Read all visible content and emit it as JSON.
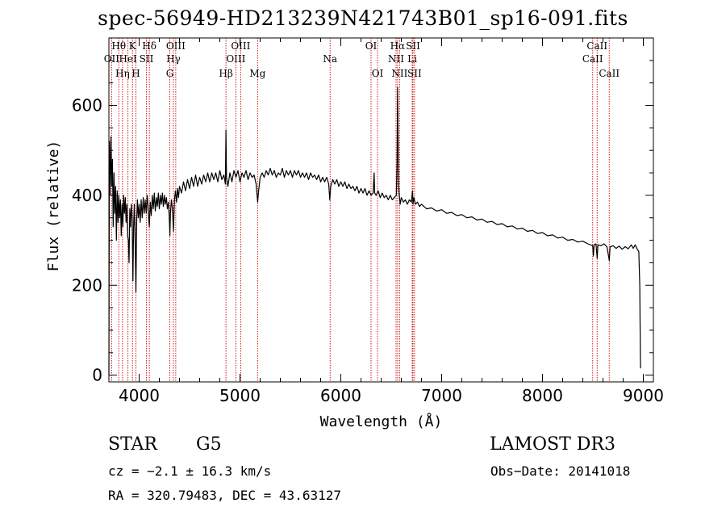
{
  "chart_data": {
    "type": "line",
    "title": "spec-56949-HD213239N421743B01_sp16-091.fits",
    "xlabel": "Wavelength (Å)",
    "ylabel": "Flux (relative)",
    "xlim": [
      3700,
      9100
    ],
    "ylim": [
      -15,
      750
    ],
    "xticks": [
      4000,
      5000,
      6000,
      7000,
      8000,
      9000
    ],
    "yticks": [
      0,
      200,
      400,
      600
    ],
    "series": [
      {
        "name": "spectrum",
        "points": [
          [
            3700,
            0
          ],
          [
            3705,
            520
          ],
          [
            3712,
            400
          ],
          [
            3720,
            530
          ],
          [
            3728,
            420
          ],
          [
            3735,
            480
          ],
          [
            3742,
            330
          ],
          [
            3750,
            450
          ],
          [
            3758,
            360
          ],
          [
            3766,
            420
          ],
          [
            3774,
            300
          ],
          [
            3782,
            410
          ],
          [
            3790,
            340
          ],
          [
            3798,
            400
          ],
          [
            3806,
            350
          ],
          [
            3814,
            390
          ],
          [
            3822,
            310
          ],
          [
            3830,
            380
          ],
          [
            3838,
            330
          ],
          [
            3846,
            400
          ],
          [
            3854,
            360
          ],
          [
            3862,
            395
          ],
          [
            3870,
            340
          ],
          [
            3878,
            380
          ],
          [
            3886,
            310
          ],
          [
            3893,
            300
          ],
          [
            3900,
            250
          ],
          [
            3907,
            370
          ],
          [
            3914,
            330
          ],
          [
            3922,
            380
          ],
          [
            3930,
            350
          ],
          [
            3938,
            210
          ],
          [
            3945,
            330
          ],
          [
            3952,
            380
          ],
          [
            3960,
            300
          ],
          [
            3968,
            185
          ],
          [
            3975,
            340
          ],
          [
            3983,
            390
          ],
          [
            3992,
            350
          ],
          [
            4000,
            380
          ],
          [
            4010,
            340
          ],
          [
            4020,
            390
          ],
          [
            4030,
            350
          ],
          [
            4040,
            395
          ],
          [
            4050,
            360
          ],
          [
            4060,
            390
          ],
          [
            4070,
            360
          ],
          [
            4080,
            400
          ],
          [
            4090,
            365
          ],
          [
            4101,
            330
          ],
          [
            4110,
            385
          ],
          [
            4120,
            355
          ],
          [
            4130,
            400
          ],
          [
            4140,
            370
          ],
          [
            4150,
            405
          ],
          [
            4160,
            365
          ],
          [
            4170,
            395
          ],
          [
            4180,
            375
          ],
          [
            4190,
            405
          ],
          [
            4200,
            370
          ],
          [
            4210,
            400
          ],
          [
            4220,
            380
          ],
          [
            4230,
            405
          ],
          [
            4240,
            375
          ],
          [
            4250,
            400
          ],
          [
            4260,
            380
          ],
          [
            4270,
            395
          ],
          [
            4280,
            370
          ],
          [
            4290,
            385
          ],
          [
            4300,
            345
          ],
          [
            4305,
            310
          ],
          [
            4310,
            360
          ],
          [
            4320,
            390
          ],
          [
            4330,
            370
          ],
          [
            4340,
            320
          ],
          [
            4350,
            390
          ],
          [
            4360,
            410
          ],
          [
            4370,
            385
          ],
          [
            4380,
            415
          ],
          [
            4390,
            395
          ],
          [
            4400,
            420
          ],
          [
            4420,
            405
          ],
          [
            4440,
            430
          ],
          [
            4460,
            410
          ],
          [
            4480,
            435
          ],
          [
            4500,
            415
          ],
          [
            4520,
            440
          ],
          [
            4540,
            420
          ],
          [
            4560,
            445
          ],
          [
            4580,
            420
          ],
          [
            4600,
            440
          ],
          [
            4620,
            425
          ],
          [
            4640,
            445
          ],
          [
            4660,
            430
          ],
          [
            4680,
            450
          ],
          [
            4700,
            430
          ],
          [
            4720,
            450
          ],
          [
            4740,
            435
          ],
          [
            4760,
            450
          ],
          [
            4780,
            430
          ],
          [
            4800,
            455
          ],
          [
            4820,
            435
          ],
          [
            4840,
            445
          ],
          [
            4855,
            425
          ],
          [
            4861,
            545
          ],
          [
            4866,
            440
          ],
          [
            4880,
            420
          ],
          [
            4900,
            450
          ],
          [
            4920,
            430
          ],
          [
            4940,
            455
          ],
          [
            4960,
            440
          ],
          [
            4980,
            455
          ],
          [
            5000,
            430
          ],
          [
            5020,
            450
          ],
          [
            5040,
            440
          ],
          [
            5060,
            455
          ],
          [
            5080,
            435
          ],
          [
            5100,
            450
          ],
          [
            5120,
            440
          ],
          [
            5140,
            445
          ],
          [
            5160,
            425
          ],
          [
            5175,
            385
          ],
          [
            5185,
            410
          ],
          [
            5200,
            440
          ],
          [
            5220,
            450
          ],
          [
            5240,
            440
          ],
          [
            5260,
            455
          ],
          [
            5280,
            445
          ],
          [
            5300,
            460
          ],
          [
            5320,
            445
          ],
          [
            5340,
            455
          ],
          [
            5360,
            440
          ],
          [
            5380,
            450
          ],
          [
            5400,
            445
          ],
          [
            5420,
            460
          ],
          [
            5440,
            440
          ],
          [
            5460,
            455
          ],
          [
            5480,
            445
          ],
          [
            5500,
            455
          ],
          [
            5520,
            440
          ],
          [
            5540,
            455
          ],
          [
            5560,
            445
          ],
          [
            5580,
            455
          ],
          [
            5600,
            440
          ],
          [
            5620,
            450
          ],
          [
            5640,
            440
          ],
          [
            5660,
            450
          ],
          [
            5680,
            435
          ],
          [
            5700,
            450
          ],
          [
            5720,
            440
          ],
          [
            5740,
            445
          ],
          [
            5760,
            435
          ],
          [
            5780,
            445
          ],
          [
            5800,
            430
          ],
          [
            5820,
            440
          ],
          [
            5840,
            430
          ],
          [
            5860,
            440
          ],
          [
            5880,
            425
          ],
          [
            5890,
            390
          ],
          [
            5900,
            420
          ],
          [
            5920,
            435
          ],
          [
            5940,
            425
          ],
          [
            5960,
            435
          ],
          [
            5980,
            420
          ],
          [
            6000,
            430
          ],
          [
            6020,
            420
          ],
          [
            6040,
            430
          ],
          [
            6060,
            415
          ],
          [
            6080,
            425
          ],
          [
            6100,
            415
          ],
          [
            6120,
            420
          ],
          [
            6140,
            410
          ],
          [
            6160,
            420
          ],
          [
            6180,
            405
          ],
          [
            6200,
            415
          ],
          [
            6220,
            405
          ],
          [
            6240,
            415
          ],
          [
            6260,
            400
          ],
          [
            6280,
            410
          ],
          [
            6300,
            400
          ],
          [
            6320,
            405
          ],
          [
            6330,
            450
          ],
          [
            6336,
            405
          ],
          [
            6350,
            400
          ],
          [
            6370,
            410
          ],
          [
            6390,
            395
          ],
          [
            6410,
            405
          ],
          [
            6430,
            395
          ],
          [
            6450,
            400
          ],
          [
            6470,
            390
          ],
          [
            6490,
            400
          ],
          [
            6510,
            390
          ],
          [
            6530,
            395
          ],
          [
            6550,
            400
          ],
          [
            6558,
            470
          ],
          [
            6563,
            640
          ],
          [
            6567,
            550
          ],
          [
            6572,
            420
          ],
          [
            6580,
            400
          ],
          [
            6588,
            380
          ],
          [
            6600,
            395
          ],
          [
            6620,
            385
          ],
          [
            6640,
            390
          ],
          [
            6660,
            380
          ],
          [
            6680,
            390
          ],
          [
            6700,
            385
          ],
          [
            6710,
            410
          ],
          [
            6716,
            380
          ],
          [
            6725,
            395
          ],
          [
            6740,
            380
          ],
          [
            6760,
            385
          ],
          [
            6780,
            375
          ],
          [
            6800,
            380
          ],
          [
            6850,
            370
          ],
          [
            6900,
            372
          ],
          [
            6950,
            365
          ],
          [
            7000,
            368
          ],
          [
            7050,
            360
          ],
          [
            7100,
            362
          ],
          [
            7150,
            355
          ],
          [
            7200,
            357
          ],
          [
            7250,
            350
          ],
          [
            7300,
            352
          ],
          [
            7350,
            345
          ],
          [
            7400,
            347
          ],
          [
            7450,
            340
          ],
          [
            7500,
            342
          ],
          [
            7550,
            335
          ],
          [
            7600,
            337
          ],
          [
            7650,
            330
          ],
          [
            7700,
            332
          ],
          [
            7750,
            325
          ],
          [
            7800,
            327
          ],
          [
            7850,
            320
          ],
          [
            7900,
            322
          ],
          [
            7950,
            315
          ],
          [
            8000,
            317
          ],
          [
            8050,
            310
          ],
          [
            8100,
            312
          ],
          [
            8150,
            305
          ],
          [
            8200,
            307
          ],
          [
            8250,
            300
          ],
          [
            8300,
            302
          ],
          [
            8350,
            296
          ],
          [
            8400,
            298
          ],
          [
            8450,
            292
          ],
          [
            8498,
            288
          ],
          [
            8505,
            265
          ],
          [
            8512,
            290
          ],
          [
            8530,
            292
          ],
          [
            8542,
            260
          ],
          [
            8550,
            290
          ],
          [
            8580,
            288
          ],
          [
            8610,
            292
          ],
          [
            8640,
            285
          ],
          [
            8662,
            255
          ],
          [
            8670,
            285
          ],
          [
            8700,
            288
          ],
          [
            8730,
            282
          ],
          [
            8760,
            287
          ],
          [
            8790,
            280
          ],
          [
            8820,
            286
          ],
          [
            8850,
            281
          ],
          [
            8880,
            290
          ],
          [
            8900,
            282
          ],
          [
            8920,
            290
          ],
          [
            8940,
            280
          ],
          [
            8955,
            275
          ],
          [
            8965,
            200
          ],
          [
            8970,
            50
          ],
          [
            8973,
            15
          ]
        ]
      }
    ],
    "line_markers": [
      {
        "name": "OII",
        "wl": 3727,
        "row": 2
      },
      {
        "name": "Hθ",
        "wl": 3798,
        "row": 1
      },
      {
        "name": "Hη",
        "wl": 3835,
        "row": 3
      },
      {
        "name": "HeI",
        "wl": 3889,
        "row": 2
      },
      {
        "name": "K",
        "wl": 3934,
        "row": 1
      },
      {
        "name": "H",
        "wl": 3968,
        "row": 3
      },
      {
        "name": "SII",
        "wl": 4072,
        "row": 2
      },
      {
        "name": "Hδ",
        "wl": 4101,
        "row": 1
      },
      {
        "name": "G",
        "wl": 4304,
        "row": 3
      },
      {
        "name": "Hγ",
        "wl": 4340,
        "row": 2
      },
      {
        "name": "OIII",
        "wl": 4363,
        "row": 1
      },
      {
        "name": "Hβ",
        "wl": 4861,
        "row": 3
      },
      {
        "name": "OIII",
        "wl": 4959,
        "row": 2
      },
      {
        "name": "OIII",
        "wl": 5007,
        "row": 1
      },
      {
        "name": "Mg",
        "wl": 5175,
        "row": 3
      },
      {
        "name": "Na",
        "wl": 5894,
        "row": 2
      },
      {
        "name": "OI",
        "wl": 6300,
        "row": 1
      },
      {
        "name": "OI",
        "wl": 6364,
        "row": 3
      },
      {
        "name": "NII",
        "wl": 6548,
        "row": 2
      },
      {
        "name": "Hα",
        "wl": 6563,
        "row": 1
      },
      {
        "name": "NII",
        "wl": 6583,
        "row": 3
      },
      {
        "name": "Li",
        "wl": 6708,
        "row": 2
      },
      {
        "name": "SII",
        "wl": 6716,
        "row": 1
      },
      {
        "name": "SII",
        "wl": 6731,
        "row": 3
      },
      {
        "name": "CaII",
        "wl": 8498,
        "row": 2
      },
      {
        "name": "CaII",
        "wl": 8542,
        "row": 1
      },
      {
        "name": "CaII",
        "wl": 8662,
        "row": 3
      }
    ]
  },
  "info": {
    "object_class": "STAR",
    "subclass": "G5",
    "survey": "LAMOST DR3",
    "velocity": "cz = −2.1 ± 16.3 km/s",
    "obs_date": "Obs−Date: 20141018",
    "coords": "RA = 320.79483, DEC =  43.63127"
  },
  "colors": {
    "line_marker": "#cc0000",
    "spectrum": "#000000"
  }
}
